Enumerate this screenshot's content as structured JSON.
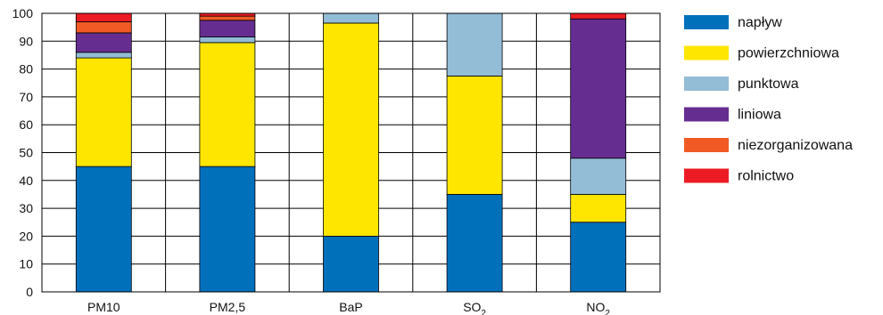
{
  "chart_data": {
    "type": "bar",
    "stacked": true,
    "categories": [
      "PM10",
      "PM2,5",
      "BaP",
      "SO",
      "NO"
    ],
    "category_subscripts": [
      "",
      "",
      "",
      "2",
      "2"
    ],
    "ylim": [
      0,
      100
    ],
    "yticks": [
      "0",
      "10",
      "20",
      "30",
      "40",
      "50",
      "60",
      "70",
      "80",
      "90",
      "100"
    ],
    "grid": true,
    "legend_position": "right",
    "series": [
      {
        "name": "napływ",
        "color": "#0070bb",
        "values": [
          45,
          45,
          20,
          35,
          25
        ]
      },
      {
        "name": "powierzchniowa",
        "color": "#ffe600",
        "values": [
          39,
          44.5,
          76.5,
          42.5,
          10
        ]
      },
      {
        "name": "punktowa",
        "color": "#93bcd6",
        "values": [
          2,
          2,
          3.5,
          22.5,
          13
        ]
      },
      {
        "name": "liniowa",
        "color": "#662d91",
        "values": [
          7,
          6,
          0,
          0,
          50
        ]
      },
      {
        "name": "niezorganizowana",
        "color": "#f15a24",
        "values": [
          4,
          1.5,
          0,
          0,
          0
        ]
      },
      {
        "name": "rolnictwo",
        "color": "#ed1c24",
        "values": [
          3,
          1,
          0,
          0,
          2
        ]
      }
    ]
  }
}
